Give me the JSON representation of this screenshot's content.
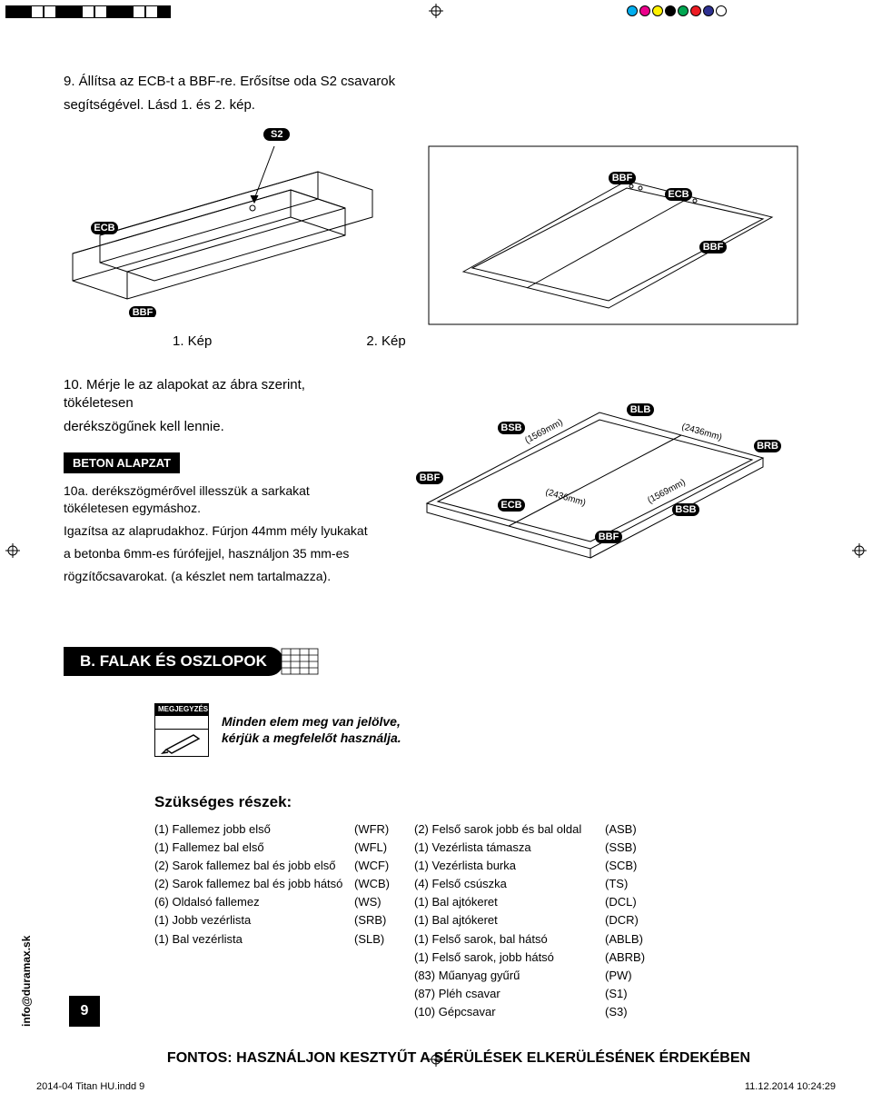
{
  "colorbar_sw": [
    "#000",
    "#000",
    "#fff",
    "#fff",
    "#000",
    "#000",
    "#fff",
    "#fff",
    "#000",
    "#000",
    "#fff",
    "#fff",
    "#000"
  ],
  "colorbar_circles": [
    "#00aeef",
    "#ec008c",
    "#fff200",
    "#000000",
    "#00a651",
    "#ed1c24",
    "#2e3192",
    "#ffffff"
  ],
  "step9": {
    "text_l1": "9. Állítsa az ECB-t a BBF-re. Erősítse oda S2 csavarok",
    "text_l2": "segítségével. Lásd 1. és 2. kép.",
    "s2": "S2",
    "labels": {
      "ecb": "ECB",
      "bbf": "BBF"
    },
    "cap1": "1. Kép",
    "cap2": "2. Kép"
  },
  "step10": {
    "text_l1": "10. Mérje le az alapokat az ábra szerint, tökéletesen",
    "text_l2": "derékszögűnek kell lennie.",
    "beton": "BETON ALAPZAT",
    "p_l1": "10a. derékszögmérővel illesszük a sarkakat tökéletesen egymáshoz.",
    "p_l2": "Igazítsa az alaprudakhoz. Fúrjon 44mm mély lyukakat",
    "p_l3": "a betonba 6mm-es fúrófejjel, használjon 35 mm-es",
    "p_l4": "rögzítőcsavarokat. (a készlet nem tartalmazza).",
    "labels": {
      "bsb": "BSB",
      "blb": "BLB",
      "brb": "BRB",
      "bbf": "BBF",
      "ecb": "ECB"
    },
    "dims": {
      "a": "(1569mm)",
      "b": "(2436mm)"
    }
  },
  "section_b": "B. FALAK ÉS OSZLOPOK",
  "note": {
    "badge": "MEGJEGYZÉS",
    "l1": "Minden elem meg van jelölve,",
    "l2": "kérjük a megfelelőt használja."
  },
  "parts": {
    "title": "Szükséges részek:",
    "left_names": "(1) Fallemez jobb első\n(1) Fallemez bal első\n(2) Sarok fallemez bal és jobb első\n(2) Sarok fallemez bal és jobb hátsó\n(6) Oldalsó fallemez\n(1) Jobb vezérlista\n(1) Bal vezérlista",
    "left_codes": "(WFR)\n(WFL)\n(WCF)\n(WCB)\n(WS)\n(SRB)\n(SLB)",
    "right_names": "(2) Felső sarok jobb és bal oldal\n(1) Vezérlista támasza\n(1) Vezérlista burka\n(4) Felső csúszka\n(1) Bal ajtókeret\n(1) Bal ajtókeret\n(1) Felső sarok, bal hátsó\n(1) Felső sarok, jobb hátsó\n(83) Műanyag gyűrű\n(87) Pléh csavar\n(10) Gépcsavar",
    "right_codes": "(ASB)\n(SSB)\n(SCB)\n(TS)\n(DCL)\n(DCR)\n(ABLB)\n(ABRB)\n(PW)\n(S1)\n(S3)"
  },
  "important": "FONTOS: HASZNÁLJON KESZTYŰT A SÉRÜLÉSEK ELKERÜLÉSÉNEK ÉRDEKÉBEN",
  "page_num": "9",
  "side": "info@duramax.sk",
  "footer": {
    "left": "2014-04 Titan HU.indd   9",
    "right": "11.12.2014   10:24:29"
  }
}
